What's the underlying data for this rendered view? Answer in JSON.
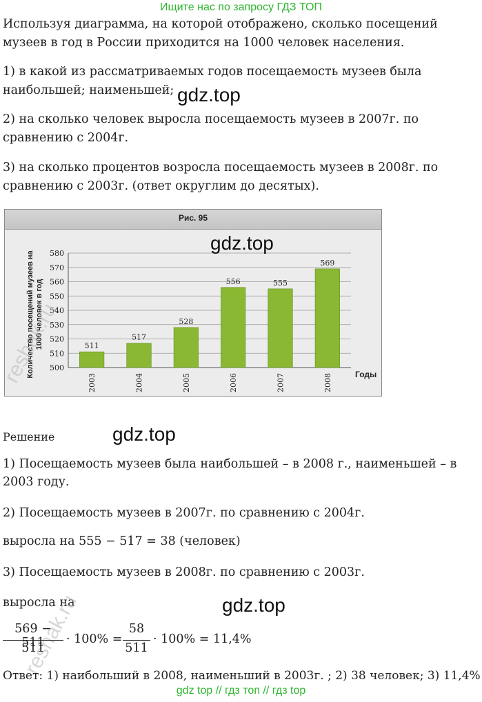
{
  "banner_top": "Ищите нас по запросу ГДЗ ТОП",
  "task": {
    "intro": "Используя диаграмма, на которой отображено, сколько посещений музеев в год в России приходится на 1000 человек населения.",
    "q1": "1) в какой из рассматриваемых годов посещаемость музеев была наибольшей; наименьшей;",
    "q2": "2) на сколько человек выросла посещаемость музеев в 2007г. по сравнению с 2004г.",
    "q3": "3) на сколько процентов возросла посещаемость музеев в 2008г. по сравнению с 2003г. (ответ округлим до десятых)."
  },
  "watermarks": {
    "gdz1": "gdz.top",
    "gdz2": "gdz.top",
    "gdz3": "gdz.top",
    "gdz4": "gdz.top",
    "reshak1": "reshak.ru",
    "reshak2": "reshak.ru"
  },
  "figure": {
    "title": "Рис. 95"
  },
  "chart_data": {
    "type": "bar",
    "title": "",
    "categories": [
      "2003",
      "2004",
      "2005",
      "2006",
      "2007",
      "2008"
    ],
    "values": [
      511,
      517,
      528,
      556,
      555,
      569
    ],
    "data_labels": [
      "511",
      "517",
      "528",
      "556",
      "555",
      "569"
    ],
    "ylabel": "Количество посещений музеев на 1000 человек в год",
    "xlabel": "Годы",
    "ylim": [
      500,
      580
    ],
    "yticks": [
      500,
      510,
      520,
      530,
      540,
      550,
      560,
      570,
      580
    ],
    "grid": true,
    "bar_color": "#8ab832"
  },
  "solution": {
    "heading": "Решение",
    "a1": "1) Посещаемость музеев была наибольшей – в 2008 г., наименьшей – в 2003 году.",
    "a2": "2) Посещаемость музеев в 2007г. по сравнению с 2004г.",
    "a2b": "выросла на 555 − 517 = 38 (человек)",
    "a3": "3) Посещаемость музеев в 2008г. по сравнению с 2003г.",
    "a3b": "выросла на",
    "frac1_num": "569 − 511",
    "frac1_den": "511",
    "mult1": "· 100% =",
    "frac2_num": "58",
    "frac2_den": "511",
    "mult2": "· 100% = 11,4%",
    "answer": "Ответ: 1) наибольший в 2008, наименьший в 2003г. ; 2) 38 человек; 3) 11,4%"
  },
  "banner_bottom": "gdz top  //  гдз топ  //  гдз top"
}
